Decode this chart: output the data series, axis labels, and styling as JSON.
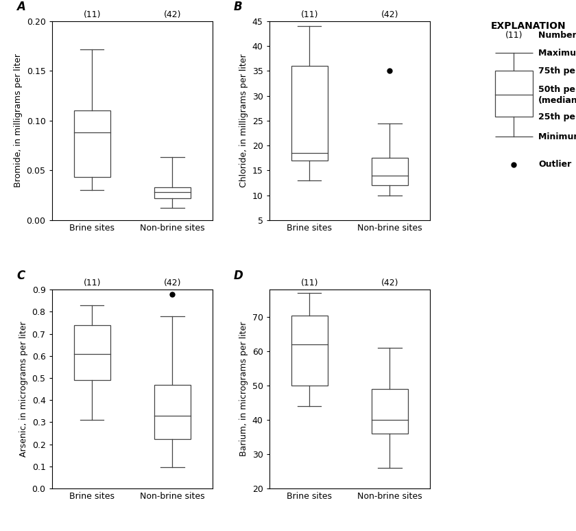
{
  "panels": [
    {
      "label": "A",
      "ylabel": "Bromide, in milligrams per liter",
      "ylim": [
        0.0,
        0.2
      ],
      "yticks": [
        0.0,
        0.05,
        0.1,
        0.15,
        0.2
      ],
      "yticklabels": [
        "0.00",
        "0.05",
        "0.10",
        "0.15",
        "0.20"
      ],
      "boxes": [
        {
          "name": "Brine sites",
          "n": 11,
          "min": 0.03,
          "q1": 0.043,
          "median": 0.088,
          "q3": 0.11,
          "max": 0.172,
          "outliers": []
        },
        {
          "name": "Non-brine sites",
          "n": 42,
          "min": 0.012,
          "q1": 0.022,
          "median": 0.028,
          "q3": 0.033,
          "max": 0.063,
          "outliers": []
        }
      ]
    },
    {
      "label": "B",
      "ylabel": "Chloride, in milligrams per liter",
      "ylim": [
        5,
        45
      ],
      "yticks": [
        5,
        10,
        15,
        20,
        25,
        30,
        35,
        40,
        45
      ],
      "yticklabels": [
        "5",
        "10",
        "15",
        "20",
        "25",
        "30",
        "35",
        "40",
        "45"
      ],
      "boxes": [
        {
          "name": "Brine sites",
          "n": 11,
          "min": 13.0,
          "q1": 17.0,
          "median": 18.5,
          "q3": 36.0,
          "max": 44.0,
          "outliers": []
        },
        {
          "name": "Non-brine sites",
          "n": 42,
          "min": 10.0,
          "q1": 12.0,
          "median": 14.0,
          "q3": 17.5,
          "max": 24.5,
          "outliers": [
            35.0
          ]
        }
      ]
    },
    {
      "label": "C",
      "ylabel": "Arsenic, in micrograms per liter",
      "ylim": [
        0.0,
        0.9
      ],
      "yticks": [
        0.0,
        0.1,
        0.2,
        0.3,
        0.4,
        0.5,
        0.6,
        0.7,
        0.8,
        0.9
      ],
      "yticklabels": [
        "0.0",
        "0.1",
        "0.2",
        "0.3",
        "0.4",
        "0.5",
        "0.6",
        "0.7",
        "0.8",
        "0.9"
      ],
      "boxes": [
        {
          "name": "Brine sites",
          "n": 11,
          "min": 0.31,
          "q1": 0.49,
          "median": 0.61,
          "q3": 0.74,
          "max": 0.83,
          "outliers": []
        },
        {
          "name": "Non-brine sites",
          "n": 42,
          "min": 0.095,
          "q1": 0.225,
          "median": 0.33,
          "q3": 0.47,
          "max": 0.78,
          "outliers": [
            0.88
          ]
        }
      ]
    },
    {
      "label": "D",
      "ylabel": "Barium, in micrograms per liter",
      "ylim": [
        20,
        78
      ],
      "yticks": [
        20,
        30,
        40,
        50,
        60,
        70
      ],
      "yticklabels": [
        "20",
        "30",
        "40",
        "50",
        "60",
        "70"
      ],
      "boxes": [
        {
          "name": "Brine sites",
          "n": 11,
          "min": 44.0,
          "q1": 50.0,
          "median": 62.0,
          "q3": 70.5,
          "max": 77.0,
          "outliers": []
        },
        {
          "name": "Non-brine sites",
          "n": 42,
          "min": 26.0,
          "q1": 36.0,
          "median": 40.0,
          "q3": 49.0,
          "max": 61.0,
          "outliers": []
        }
      ]
    }
  ],
  "box_width": 0.45,
  "line_color": "#444444",
  "xlabel_brine": "Brine sites",
  "xlabel_nonbrine": "Non-brine sites",
  "font_size": 9,
  "label_fontsize": 12,
  "tick_fontsize": 9
}
